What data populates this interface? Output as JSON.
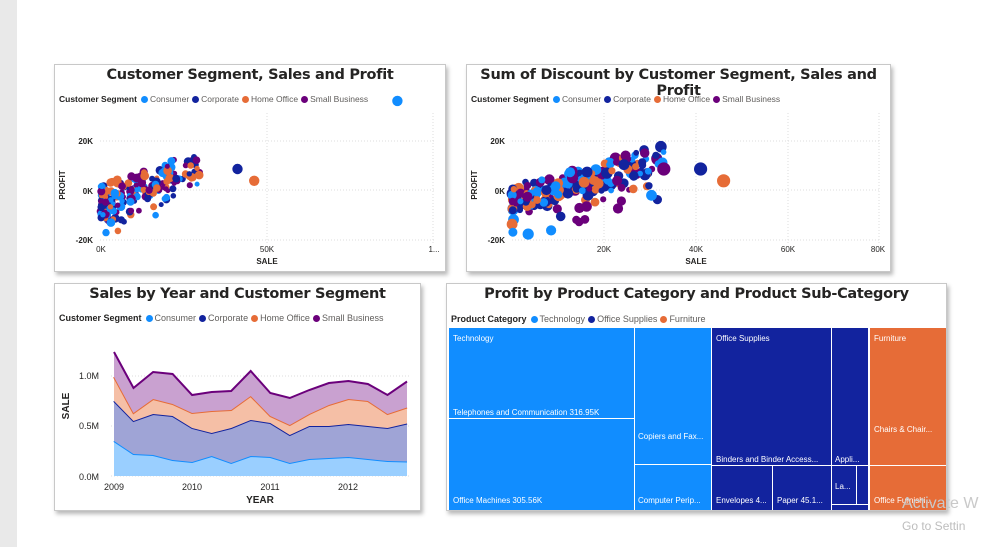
{
  "colors": {
    "consumer": "#118DFF",
    "corporate": "#12239E",
    "home_office": "#E66C37",
    "small_business": "#6B007B"
  },
  "panels": {
    "scatter1": {
      "title": "Customer Segment, Sales and Profit"
    },
    "scatter2": {
      "title": "Sum of Discount by Customer Segment, Sales and Profit"
    },
    "area": {
      "title": "Sales by Year and Customer Segment"
    },
    "treemap": {
      "title": "Profit by Product Category and Product Sub-Category"
    }
  },
  "segment_legend": {
    "title": "Customer Segment",
    "items": [
      {
        "label": "Consumer",
        "color": "#118DFF"
      },
      {
        "label": "Corporate",
        "color": "#12239E"
      },
      {
        "label": "Home Office",
        "color": "#E66C37"
      },
      {
        "label": "Small Business",
        "color": "#6B007B"
      }
    ]
  },
  "category_legend": {
    "title": "Product Category",
    "items": [
      {
        "label": "Technology",
        "color": "#118DFF"
      },
      {
        "label": "Office Supplies",
        "color": "#12239E"
      },
      {
        "label": "Furniture",
        "color": "#E66C37"
      }
    ]
  },
  "chart_data": [
    {
      "type": "scatter",
      "title": "Customer Segment, Sales and Profit",
      "xlabel": "SALE",
      "ylabel": "PROFIT",
      "x_ticks": [
        "0K",
        "50K",
        "1..."
      ],
      "y_ticks": [
        "20K",
        "0K",
        "-20K"
      ],
      "xlim": [
        0,
        100000
      ],
      "ylim": [
        -20000,
        30000
      ],
      "notable_points": [
        {
          "series": "Consumer",
          "x": 89000,
          "y": 27000
        },
        {
          "series": "Corporate",
          "x": 41000,
          "y": 4000
        },
        {
          "series": "Home Office",
          "x": 46000,
          "y": 0
        }
      ]
    },
    {
      "type": "scatter",
      "title": "Sum of Discount by Customer Segment, Sales and Profit",
      "xlabel": "SALE",
      "ylabel": "PROFIT",
      "size": "Sum of Discount",
      "x_ticks": [
        "20K",
        "40K",
        "60K",
        "80K"
      ],
      "y_ticks": [
        "20K",
        "0K",
        "-20K"
      ],
      "xlim": [
        0,
        80000
      ],
      "ylim": [
        -20000,
        30000
      ],
      "notable_points": [
        {
          "series": "Corporate",
          "x": 41000,
          "y": 4000
        },
        {
          "series": "Home Office",
          "x": 46000,
          "y": 0
        },
        {
          "series": "Small Business",
          "x": 33000,
          "y": 4000
        }
      ]
    },
    {
      "type": "area",
      "stacked": true,
      "title": "Sales by Year and Customer Segment",
      "xlabel": "YEAR",
      "ylabel": "SALE",
      "x_ticks": [
        "2009",
        "2010",
        "2011",
        "2012"
      ],
      "y_ticks": [
        "0.0M",
        "0.5M",
        "1.0M"
      ],
      "ylim": [
        0,
        1300000
      ],
      "x": [
        2009.0,
        2009.25,
        2009.5,
        2009.75,
        2010.0,
        2010.25,
        2010.5,
        2010.75,
        2011.0,
        2011.25,
        2011.5,
        2011.75,
        2012.0,
        2012.25,
        2012.5,
        2012.75
      ],
      "series": [
        {
          "name": "Consumer",
          "values": [
            350000,
            220000,
            210000,
            160000,
            140000,
            200000,
            130000,
            200000,
            190000,
            130000,
            170000,
            180000,
            190000,
            170000,
            150000,
            145000
          ]
        },
        {
          "name": "Corporate",
          "values": [
            400000,
            330000,
            410000,
            440000,
            340000,
            230000,
            350000,
            360000,
            340000,
            280000,
            330000,
            320000,
            330000,
            330000,
            330000,
            380000
          ]
        },
        {
          "name": "Home Office",
          "values": [
            240000,
            80000,
            150000,
            120000,
            150000,
            220000,
            180000,
            240000,
            70000,
            100000,
            120000,
            210000,
            250000,
            250000,
            140000,
            160000
          ]
        },
        {
          "name": "Small Business",
          "values": [
            250000,
            250000,
            270000,
            300000,
            180000,
            190000,
            190000,
            250000,
            230000,
            270000,
            240000,
            220000,
            180000,
            170000,
            190000,
            260000
          ]
        }
      ]
    },
    {
      "type": "treemap",
      "title": "Profit by Product Category and Product Sub-Category",
      "categories": [
        {
          "name": "Technology",
          "children": [
            {
              "name": "Telephones and Communication",
              "value": 316950,
              "label": "Telephones and Communication 316.95K"
            },
            {
              "name": "Office Machines",
              "value": 305560,
              "label": "Office Machines 305.56K"
            },
            {
              "name": "Copiers and Fax",
              "label": "Copiers and Fax..."
            },
            {
              "name": "Computer Peripherals",
              "label": "Computer Perip..."
            }
          ]
        },
        {
          "name": "Office Supplies",
          "children": [
            {
              "name": "Binders and Binder Accessories",
              "label": "Binders and Binder Access..."
            },
            {
              "name": "Appliances",
              "label": "Appli..."
            },
            {
              "name": "Labels",
              "label": "La..."
            },
            {
              "name": "Envelopes",
              "label": "Envelopes 4..."
            },
            {
              "name": "Paper",
              "label": "Paper 45.1..."
            }
          ]
        },
        {
          "name": "Furniture",
          "children": [
            {
              "name": "Chairs & Chairmats",
              "label": "Chairs & Chair..."
            },
            {
              "name": "Office Furnishings",
              "label": "Office Furnishi..."
            }
          ]
        }
      ]
    }
  ],
  "watermark": {
    "line1": "Activate W",
    "line2": "Go to Settin"
  }
}
